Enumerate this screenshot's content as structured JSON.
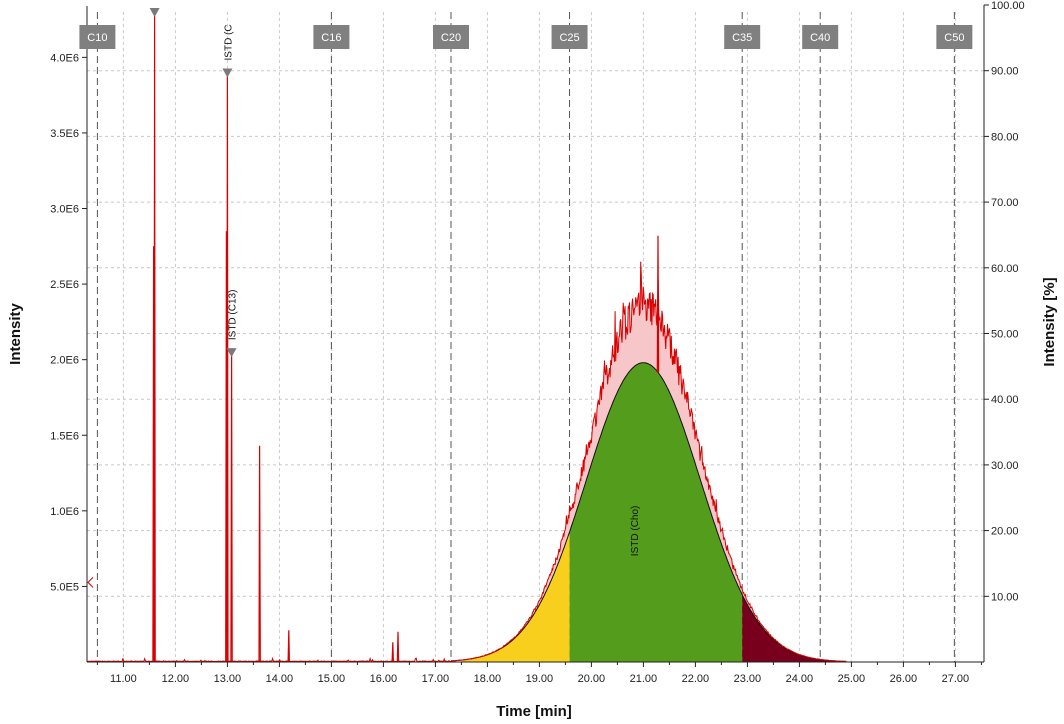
{
  "chart_data": {
    "type": "line",
    "xlabel": "Time [min]",
    "ylabel_left": "Intensity",
    "ylabel_right": "Intensity [%]",
    "xlim": [
      10.3,
      27.55
    ],
    "ylim_left": [
      0,
      4300000.0
    ],
    "ylim_right": [
      0,
      100
    ],
    "x_ticks": [
      11.0,
      12.0,
      13.0,
      14.0,
      15.0,
      16.0,
      17.0,
      18.0,
      19.0,
      20.0,
      21.0,
      22.0,
      23.0,
      24.0,
      25.0,
      26.0,
      27.0
    ],
    "x_tick_labels": [
      "11.00",
      "12.00",
      "13.00",
      "14.00",
      "15.00",
      "16.00",
      "17.00",
      "18.00",
      "19.00",
      "20.00",
      "21.00",
      "22.00",
      "23.00",
      "24.00",
      "25.00",
      "26.00",
      "27.00"
    ],
    "y_left_ticks": [
      500000,
      1000000,
      1500000,
      2000000,
      2500000,
      3000000,
      3500000,
      4000000
    ],
    "y_left_tick_labels": [
      "5.0E5",
      "1.0E6",
      "1.5E6",
      "2.0E6",
      "2.5E6",
      "3.0E6",
      "3.5E6",
      "4.0E6"
    ],
    "y_right_ticks": [
      10,
      20,
      30,
      40,
      50,
      60,
      70,
      80,
      90,
      100
    ],
    "y_right_tick_labels": [
      "10.00",
      "20.00",
      "30.00",
      "40.00",
      "50.00",
      "60.00",
      "70.00",
      "80.00",
      "90.00",
      "100.00"
    ],
    "grid": true,
    "retention_markers": [
      {
        "label": "C10",
        "x": 10.5
      },
      {
        "label": "C16",
        "x": 15.0
      },
      {
        "label": "C20",
        "x": 17.3
      },
      {
        "label": "C25",
        "x": 19.58
      },
      {
        "label": "C35",
        "x": 22.9
      },
      {
        "label": "C40",
        "x": 24.4
      },
      {
        "label": "C50",
        "x": 26.98
      }
    ],
    "peaks": [
      {
        "x": 11.6,
        "y": 4300000
      },
      {
        "x": 11.58,
        "y": 2750000
      },
      {
        "x": 12.98,
        "y": 2850000
      },
      {
        "x": 13.0,
        "y": 3900000
      },
      {
        "x": 13.08,
        "y": 2050000
      },
      {
        "x": 13.62,
        "y": 1430000
      },
      {
        "x": 14.18,
        "y": 210000
      },
      {
        "x": 16.28,
        "y": 200000
      },
      {
        "x": 16.18,
        "y": 130000
      },
      {
        "x": 21.28,
        "y": 2820000
      }
    ],
    "hump": {
      "center": 21.0,
      "sigma": 1.1,
      "height": 1980000.0,
      "noise_excess_max": 480000.0
    },
    "regions": [
      {
        "from": 17.5,
        "to": 19.58,
        "color": "#f9cf1d"
      },
      {
        "from": 19.58,
        "to": 22.9,
        "color": "#549c1c"
      },
      {
        "from": 22.9,
        "to": 24.8,
        "color": "#78001c"
      }
    ],
    "annotations": [
      {
        "text": "ISTD (C",
        "x": 13.0,
        "y": 3900000
      },
      {
        "text": "ISTD (C13)",
        "x": 13.08,
        "y": 2050000
      },
      {
        "text": "ISTD (Cho)",
        "x": 20.82,
        "y": 700000
      }
    ],
    "colors": {
      "signal": "#d80000",
      "excess_fill": "#f6c6c9",
      "marker_box": "#808080",
      "grid": "#c8c8c8",
      "triangle": "#7a7a7a"
    }
  }
}
